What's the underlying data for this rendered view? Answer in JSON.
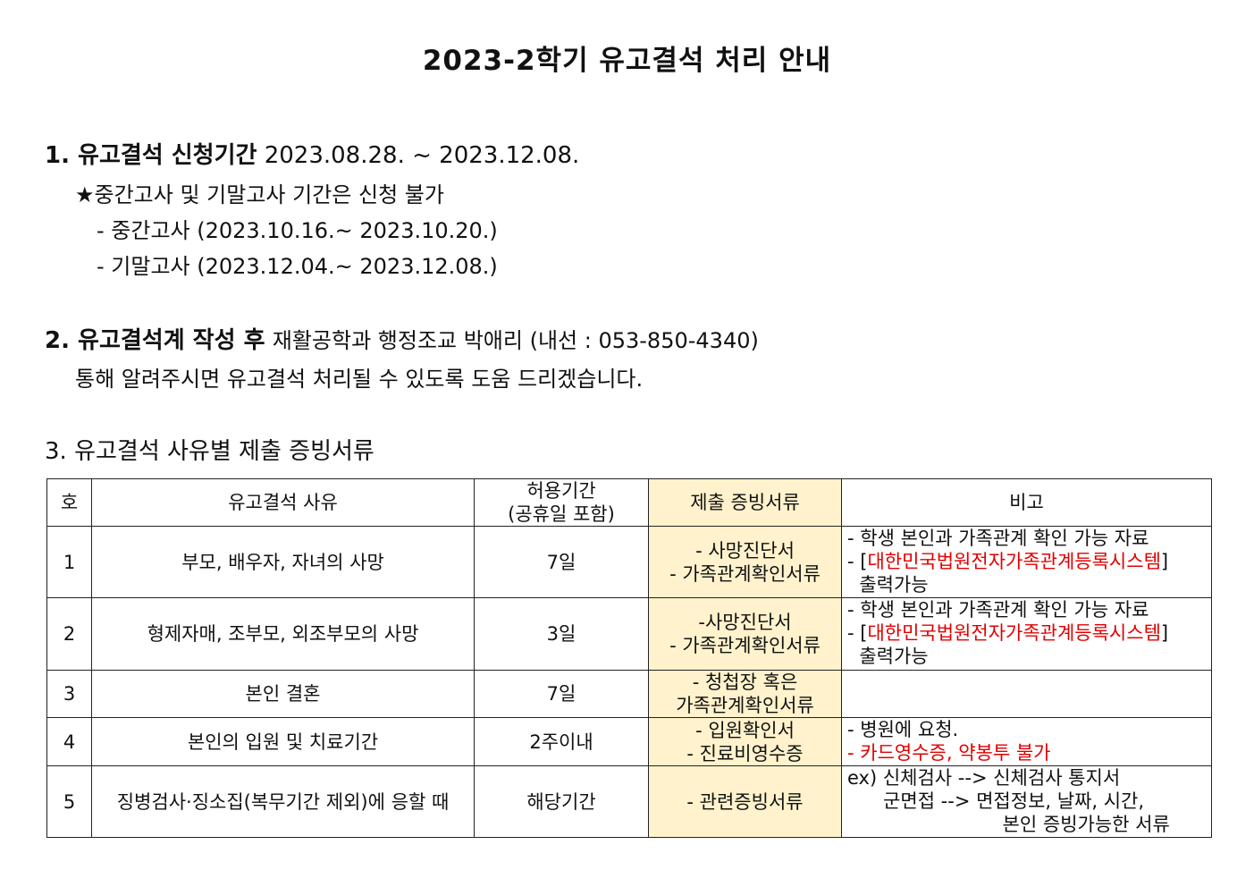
{
  "title": "2023-2학기 유고결석 처리 안내",
  "section1": {
    "heading": "1. 유고결석 신청기간",
    "period": "2023.08.28. ~ 2023.12.08.",
    "notice": "★중간고사 및 기말고사 기간은 신청 불가",
    "midterm": "- 중간고사 (2023.10.16.~ 2023.10.20.)",
    "final": "- 기말고사 (2023.12.04.~ 2023.12.08.)"
  },
  "section2": {
    "heading": "2. 유고결석계 작성 후",
    "contact": "재활공학과 행정조교 박애리 (내선 : 053-850-4340)",
    "line2": "통해 알려주시면 유고결석 처리될 수 있도록 도움 드리겠습니다."
  },
  "section3": {
    "heading": "3. 유고결석 사유별 제출 증빙서류"
  },
  "table": {
    "headers": [
      "호",
      "유고결석 사유",
      "허용기간\n(공휴일 포함)",
      "제출 증빙서류",
      "비고"
    ],
    "rows": [
      {
        "no": "1",
        "reason": "부모, 배우자, 자녀의 사망",
        "period": "7일",
        "docs": [
          "- 사망진단서",
          "- 가족관계확인서류"
        ],
        "notes": [
          {
            "text": "- 학생 본인과 가족관계 확인 가능 자료"
          },
          {
            "pre": "- [",
            "red": "대한민국법원전자가족관계등록시스템",
            "post": "]"
          },
          {
            "text": "  출력가능"
          }
        ]
      },
      {
        "no": "2",
        "reason": "형제자매, 조부모, 외조부모의 사망",
        "period": "3일",
        "docs": [
          "-사망진단서",
          "- 가족관계확인서류"
        ],
        "notes": [
          {
            "text": "- 학생 본인과 가족관계 확인 가능 자료"
          },
          {
            "pre": "- [",
            "red": "대한민국법원전자가족관계등록시스템",
            "post": "]"
          },
          {
            "text": "  출력가능"
          }
        ]
      },
      {
        "no": "3",
        "reason": "본인 결혼",
        "period": "7일",
        "docs": [
          "- 청첩장 혹은",
          "가족관계확인서류"
        ],
        "notes": []
      },
      {
        "no": "4",
        "reason": "본인의 입원 및 치료기간",
        "period": "2주이내",
        "docs": [
          "- 입원확인서",
          "- 진료비영수증"
        ],
        "notes": [
          {
            "text": "- 병원에 요청."
          },
          {
            "pre": "",
            "red": "- 카드영수증, 약봉투 불가",
            "post": ""
          }
        ]
      },
      {
        "no": "5",
        "reason": "징병검사·징소집(복무기간 제외)에 응할 때",
        "period": "해당기간",
        "docs": [
          "- 관련증빙서류"
        ],
        "notes": [
          {
            "text": "ex) 신체검사 --> 신체검사 통지서"
          },
          {
            "text": "      군면접 --> 면접정보, 날짜, 시간,"
          },
          {
            "text": "                          본인 증빙가능한 서류"
          }
        ]
      }
    ]
  },
  "colors": {
    "highlight": "#fff2cc",
    "red": "#e00000"
  }
}
